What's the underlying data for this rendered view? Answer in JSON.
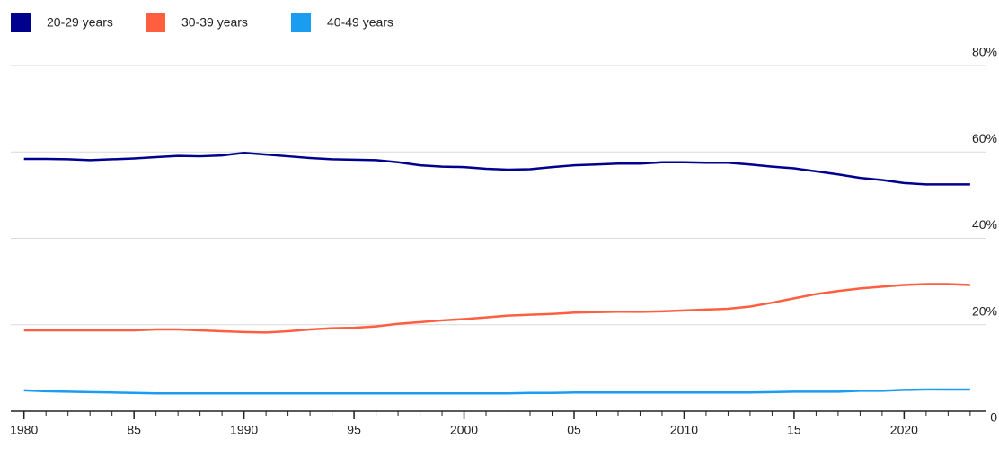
{
  "chart_data": {
    "type": "line",
    "x": [
      1980,
      1981,
      1982,
      1983,
      1984,
      1985,
      1986,
      1987,
      1988,
      1989,
      1990,
      1991,
      1992,
      1993,
      1994,
      1995,
      1996,
      1997,
      1998,
      1999,
      2000,
      2001,
      2002,
      2003,
      2004,
      2005,
      2006,
      2007,
      2008,
      2009,
      2010,
      2011,
      2012,
      2013,
      2014,
      2015,
      2016,
      2017,
      2018,
      2019,
      2020,
      2021,
      2022,
      2023
    ],
    "series": [
      {
        "name": "20-29 years",
        "color": "#00008f",
        "values": [
          58.4,
          58.4,
          58.3,
          58.1,
          58.3,
          58.5,
          58.8,
          59.1,
          59.0,
          59.2,
          59.8,
          59.4,
          59.0,
          58.6,
          58.3,
          58.2,
          58.1,
          57.6,
          56.9,
          56.6,
          56.5,
          56.1,
          55.9,
          56.0,
          56.5,
          56.9,
          57.1,
          57.3,
          57.3,
          57.6,
          57.6,
          57.5,
          57.5,
          57.1,
          56.6,
          56.2,
          55.5,
          54.8,
          54.0,
          53.5,
          52.8,
          52.5,
          52.5,
          52.5
        ]
      },
      {
        "name": "30-39 years",
        "color": "#ff5f3f",
        "values": [
          18.7,
          18.7,
          18.7,
          18.7,
          18.7,
          18.7,
          18.9,
          18.9,
          18.7,
          18.5,
          18.3,
          18.2,
          18.5,
          18.9,
          19.2,
          19.3,
          19.6,
          20.2,
          20.6,
          21.0,
          21.3,
          21.7,
          22.1,
          22.3,
          22.5,
          22.8,
          22.9,
          23.0,
          23.0,
          23.1,
          23.3,
          23.5,
          23.7,
          24.2,
          25.1,
          26.1,
          27.1,
          27.8,
          28.4,
          28.8,
          29.2,
          29.4,
          29.4,
          29.2
        ]
      },
      {
        "name": "40-49 years",
        "color": "#1a9cf0",
        "values": [
          4.8,
          4.6,
          4.5,
          4.4,
          4.3,
          4.2,
          4.1,
          4.1,
          4.1,
          4.1,
          4.1,
          4.1,
          4.1,
          4.1,
          4.1,
          4.1,
          4.1,
          4.1,
          4.1,
          4.1,
          4.1,
          4.1,
          4.1,
          4.2,
          4.2,
          4.3,
          4.3,
          4.3,
          4.3,
          4.3,
          4.3,
          4.3,
          4.3,
          4.3,
          4.4,
          4.5,
          4.5,
          4.5,
          4.7,
          4.7,
          4.9,
          5.0,
          5.0,
          5.0
        ]
      }
    ],
    "xlim": [
      1979.4,
      2023.7
    ],
    "xticks": [
      1980,
      {
        "value": 1985,
        "label": "85"
      },
      1990,
      {
        "value": 1995,
        "label": "95"
      },
      2000,
      {
        "value": 2005,
        "label": "05"
      },
      2010,
      {
        "value": 2015,
        "label": "15"
      },
      2020
    ],
    "ylim": [
      0,
      80
    ],
    "yticks": [
      0,
      {
        "value": 20,
        "label": "20%"
      },
      {
        "value": 40,
        "label": "40%"
      },
      {
        "value": 60,
        "label": "60%"
      },
      {
        "value": 80,
        "label": "80%"
      }
    ],
    "grid": true,
    "legend": "top-left"
  }
}
